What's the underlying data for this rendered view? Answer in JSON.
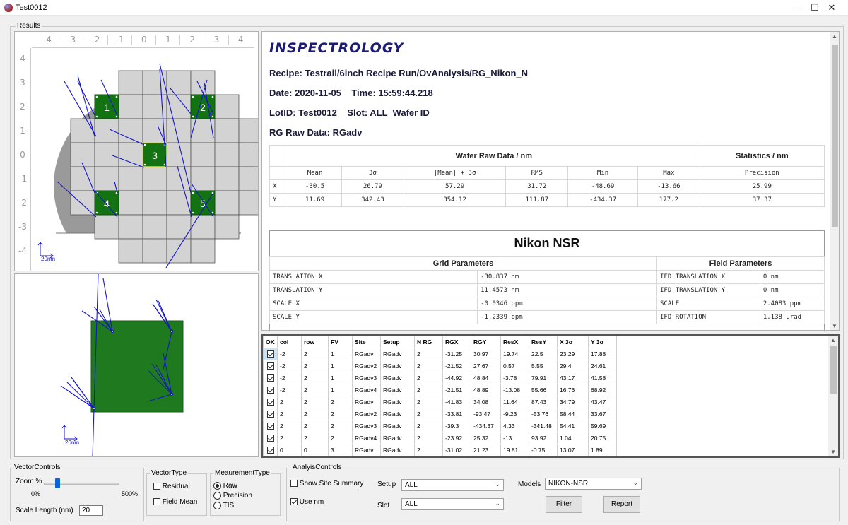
{
  "window": {
    "title": "Test0012",
    "minimize": "—",
    "maximize": "☐",
    "close": "✕"
  },
  "results_label": "Results",
  "ruler": {
    "top": [
      "-4",
      "-3",
      "-2",
      "-1",
      "0",
      "1",
      "2",
      "3",
      "4"
    ],
    "left": [
      "4",
      "3",
      "2",
      "1",
      "0",
      "-1",
      "-2",
      "-3",
      "-4"
    ]
  },
  "wafer_map": {
    "scale_label": "20nm",
    "fields": [
      "1",
      "2",
      "3",
      "4",
      "5"
    ]
  },
  "field_view": {
    "scale_label": "20nm"
  },
  "report": {
    "logo": "INSPECTROLOGY",
    "recipe": "Recipe: Testrail/6inch Recipe Run/OvAnalysis/RG_Nikon_N",
    "date": "Date: 2020-11-05    Time: 15:59:44.218",
    "lot": "LotID: Test0012    Slot: ALL  Wafer ID",
    "rg_raw": "RG Raw Data: RGadv",
    "raw_table": {
      "group1": "Wafer Raw Data / nm",
      "group2": "Statistics / nm",
      "headers": [
        "Mean",
        "3σ",
        "|Mean| + 3σ",
        "RMS",
        "Min",
        "Max",
        "Precision"
      ],
      "rows": [
        {
          "label": "X",
          "values": [
            "-30.5",
            "26.79",
            "57.29",
            "31.72",
            "-48.69",
            "-13.66",
            "25.99"
          ]
        },
        {
          "label": "Y",
          "values": [
            "11.69",
            "342.43",
            "354.12",
            "111.87",
            "-434.37",
            "177.2",
            "37.37"
          ]
        }
      ]
    },
    "nikon": {
      "title": "Nikon NSR",
      "grid_header": "Grid Parameters",
      "field_header": "Field Parameters",
      "rows": [
        [
          "TRANSLATION X",
          "-30.837 nm",
          "IFD TRANSLATION X",
          "0 nm"
        ],
        [
          "TRANSLATION Y",
          "11.4573 nm",
          "IFD TRANSLATION Y",
          "0 nm"
        ],
        [
          "SCALE X",
          "-0.0346 ppm",
          "SCALE",
          "2.4083 ppm"
        ],
        [
          "SCALE Y",
          "-1.2339 ppm",
          "IFD ROTATION",
          "1.138 urad"
        ]
      ]
    }
  },
  "data_grid": {
    "headers": [
      "OK",
      "col",
      "row",
      "FV",
      "Site",
      "Setup",
      "N RG",
      "RGX",
      "RGY",
      "ResX",
      "ResY",
      "X 3σ",
      "Y 3σ"
    ],
    "rows": [
      [
        "-2",
        "2",
        "1",
        "RGadv",
        "RGadv",
        "2",
        "-31.25",
        "30.97",
        "19.74",
        "22.5",
        "23.29",
        "17.88"
      ],
      [
        "-2",
        "2",
        "1",
        "RGadv2",
        "RGadv",
        "2",
        "-21.52",
        "27.67",
        "0.57",
        "5.55",
        "29.4",
        "24.61"
      ],
      [
        "-2",
        "2",
        "1",
        "RGadv3",
        "RGadv",
        "2",
        "-44.92",
        "48.84",
        "-3.78",
        "79.91",
        "43.17",
        "41.58"
      ],
      [
        "-2",
        "2",
        "1",
        "RGadv4",
        "RGadv",
        "2",
        "-21.51",
        "48.89",
        "-13.08",
        "55.66",
        "16.76",
        "68.92"
      ],
      [
        "2",
        "2",
        "2",
        "RGadv",
        "RGadv",
        "2",
        "-41.83",
        "34.08",
        "11.64",
        "87.43",
        "34.79",
        "43.47"
      ],
      [
        "2",
        "2",
        "2",
        "RGadv2",
        "RGadv",
        "2",
        "-33.81",
        "-93.47",
        "-9.23",
        "-53.76",
        "58.44",
        "33.67"
      ],
      [
        "2",
        "2",
        "2",
        "RGadv3",
        "RGadv",
        "2",
        "-39.3",
        "-434.37",
        "4.33",
        "-341.48",
        "54.41",
        "59.69"
      ],
      [
        "2",
        "2",
        "2",
        "RGadv4",
        "RGadv",
        "2",
        "-23.92",
        "25.32",
        "-13",
        "93.92",
        "1.04",
        "20.75"
      ],
      [
        "0",
        "0",
        "3",
        "RGadv",
        "RGadv",
        "2",
        "-31.02",
        "21.23",
        "19.81",
        "-0.75",
        "13.07",
        "1.89"
      ]
    ]
  },
  "vector_controls": {
    "title": "VectorControls",
    "zoom_label": "Zoom %",
    "zoom_min": "0%",
    "zoom_max": "500%",
    "zoom_value": 0.1,
    "scale_length_label": "Scale Length (nm)",
    "scale_length_value": "20"
  },
  "vector_type": {
    "title": "VectorType",
    "residual": "Residual",
    "field_mean": "Field Mean"
  },
  "measurement_type": {
    "title": "MeaurementType",
    "raw": "Raw",
    "precision": "Precision",
    "tis": "TIS"
  },
  "analysis_controls": {
    "title": "AnalyisControls",
    "show_site_summary": "Show Site Summary",
    "use_nm": "Use nm",
    "setup_label": "Setup",
    "setup_value": "ALL",
    "slot_label": "Slot",
    "slot_value": "ALL",
    "models_label": "Models",
    "models_value": "NIKON-NSR",
    "filter_button": "Filter",
    "report_button": "Report"
  }
}
